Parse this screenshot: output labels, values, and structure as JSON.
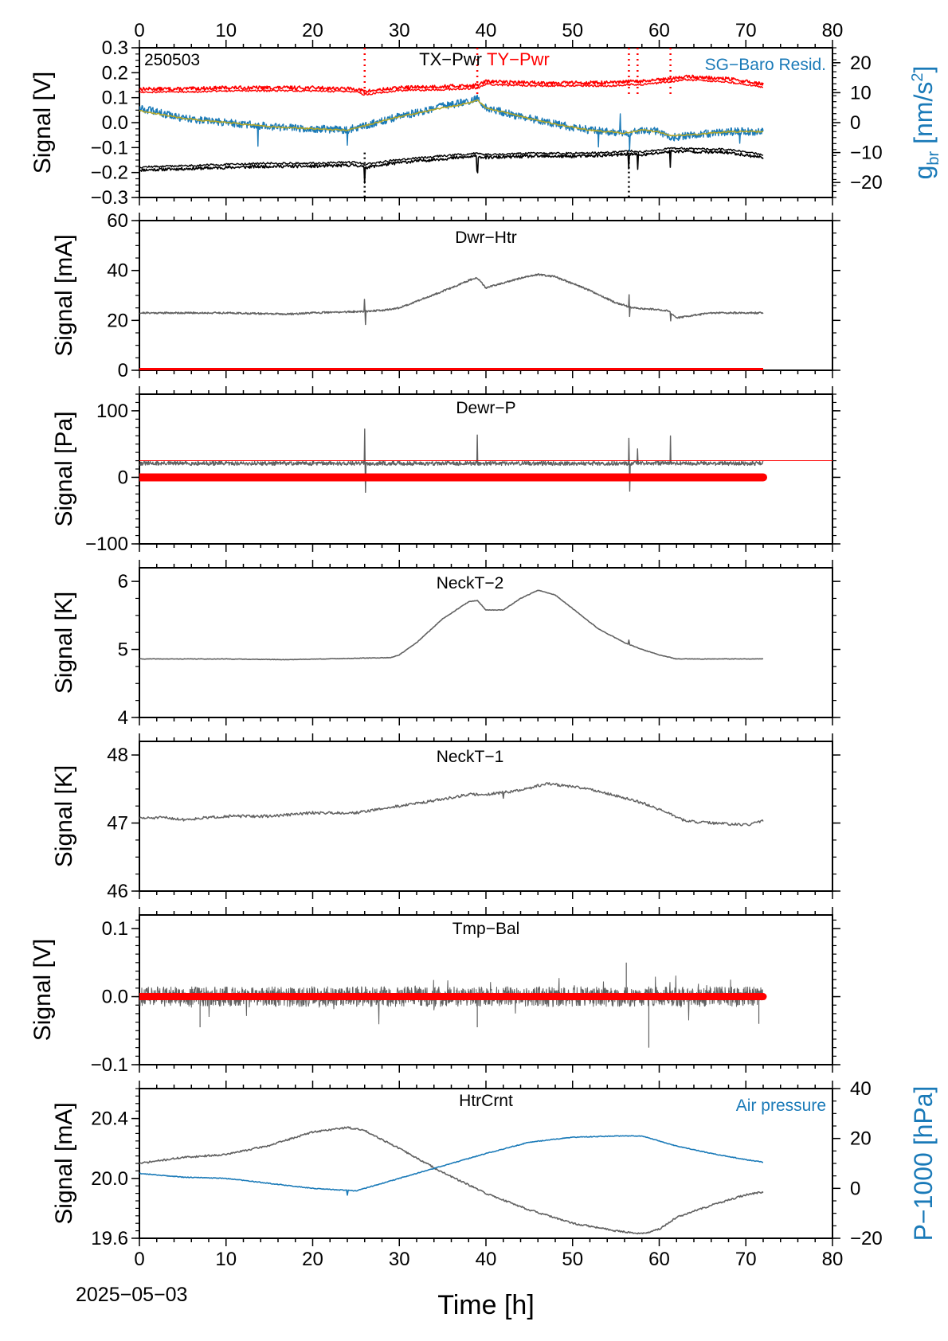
{
  "figure": {
    "date_label": "2025−05−03",
    "x_axis_label": "Time [h]",
    "x_ticks": [
      "0",
      "10",
      "20",
      "30",
      "40",
      "50",
      "60",
      "70",
      "80"
    ]
  },
  "chart_data": [
    {
      "type": "line",
      "panel_id": "p1",
      "corner_label": "250503",
      "title_parts": [
        "TX−Pwr",
        "TY−Pwr"
      ],
      "right_series_label": "SG−Baro Resid.",
      "ylabel": "Signal [V]",
      "ylim": [
        -0.3,
        0.3
      ],
      "y_ticks": [
        "0.3",
        "0.2",
        "0.1",
        "0.0",
        "−0.1",
        "−0.2",
        "−0.3"
      ],
      "y2label_main": "g",
      "y2label_sub": "br",
      "y2label_rest": " [nm/s",
      "y2label_sup": "2",
      "y2label_end": "]",
      "y2lim": [
        -25,
        25
      ],
      "y2_ticks": [
        "20",
        "10",
        "0",
        "−10",
        "−20"
      ],
      "xlim": [
        0,
        80
      ],
      "series": [
        {
          "name": "TX−Pwr",
          "axis": "left",
          "color": "#000000",
          "x": [
            0,
            5,
            10,
            15,
            20,
            25,
            26,
            30,
            35,
            39,
            40,
            45,
            50,
            55,
            56.5,
            58,
            61.3,
            63,
            68,
            72
          ],
          "y": [
            -0.19,
            -0.185,
            -0.18,
            -0.175,
            -0.175,
            -0.17,
            -0.18,
            -0.16,
            -0.145,
            -0.135,
            -0.14,
            -0.135,
            -0.135,
            -0.13,
            -0.125,
            -0.13,
            -0.115,
            -0.115,
            -0.12,
            -0.14
          ]
        },
        {
          "name": "TY−Pwr",
          "axis": "left",
          "color": "#ff0000",
          "x": [
            0,
            5,
            10,
            15,
            20,
            25,
            26,
            30,
            35,
            39,
            40,
            45,
            50,
            55,
            56.5,
            58,
            61.3,
            63,
            68,
            72
          ],
          "y": [
            0.135,
            0.135,
            0.14,
            0.14,
            0.14,
            0.135,
            0.125,
            0.14,
            0.145,
            0.15,
            0.165,
            0.16,
            0.16,
            0.16,
            0.165,
            0.165,
            0.175,
            0.185,
            0.175,
            0.155
          ]
        },
        {
          "name": "SG−Baro Resid.",
          "axis": "right",
          "color": "#1a7ab8",
          "x": [
            0,
            2,
            5,
            8,
            12,
            16,
            20,
            24,
            26,
            30,
            35,
            38,
            39,
            40,
            44,
            48,
            52,
            56,
            58,
            60,
            61.3,
            64,
            68,
            72
          ],
          "y": [
            5,
            3.5,
            1.5,
            0.5,
            -0.5,
            -1.5,
            -2,
            -2.5,
            -1,
            2,
            5.5,
            7,
            8,
            5,
            2,
            -0.5,
            -2.5,
            -3.5,
            -2.5,
            -3,
            -5,
            -4,
            -3,
            -3
          ]
        },
        {
          "name": "",
          "axis": "right",
          "color": "#b0a62a",
          "x": [
            0,
            2,
            5,
            8,
            12,
            16,
            20,
            24,
            26,
            30,
            35,
            38,
            39,
            40,
            44,
            48,
            52,
            56,
            58,
            60,
            61.3,
            64,
            68,
            72
          ],
          "y": [
            4,
            3,
            1.5,
            0.5,
            -0.5,
            -1.5,
            -2,
            -2.5,
            -1,
            2,
            5,
            6.5,
            7.5,
            5,
            2,
            -0.5,
            -2.5,
            -3.5,
            -2.5,
            -3,
            -4.5,
            -4,
            -3,
            -3
          ]
        }
      ]
    },
    {
      "type": "line",
      "panel_id": "p2",
      "title": "Dwr−Htr",
      "ylabel": "Signal [mA]",
      "ylim": [
        0,
        60
      ],
      "y_ticks": [
        "60",
        "40",
        "20",
        "0"
      ],
      "xlim": [
        0,
        80
      ],
      "series": [
        {
          "name": "",
          "color": "#616161",
          "x": [
            0,
            10,
            17,
            20,
            25,
            28,
            30,
            33,
            36,
            38,
            39,
            40,
            43,
            46,
            48,
            52,
            55,
            57,
            61,
            62,
            66,
            72
          ],
          "y": [
            23,
            23,
            22.5,
            23,
            23.5,
            24,
            25,
            29,
            33,
            36,
            37,
            33,
            36,
            38.5,
            37.5,
            32,
            27,
            25,
            24,
            21,
            23,
            23
          ]
        },
        {
          "name": "",
          "color": "#ff0000",
          "x": [
            0,
            72
          ],
          "y": [
            0,
            0
          ]
        }
      ]
    },
    {
      "type": "line",
      "panel_id": "p3",
      "title": "Dewr−P",
      "ylabel": "Signal [Pa]",
      "ylim": [
        -100,
        125
      ],
      "y_ticks": [
        "100",
        "0",
        "−100"
      ],
      "xlim": [
        0,
        80
      ],
      "series": [
        {
          "name": "",
          "color": "#616161",
          "x": [
            0,
            72
          ],
          "y": [
            21,
            21
          ]
        },
        {
          "name": "",
          "color": "#ff0000",
          "x": [
            0,
            72
          ],
          "y": [
            0,
            0
          ]
        },
        {
          "name": "",
          "color": "#ff0000",
          "x": [
            0,
            80
          ],
          "y": [
            25,
            25
          ]
        }
      ]
    },
    {
      "type": "line",
      "panel_id": "p4",
      "title": "NeckT−2",
      "ylabel": "Signal [K]",
      "ylim": [
        4,
        6.2
      ],
      "y_ticks": [
        "6",
        "5",
        "4"
      ],
      "xlim": [
        0,
        80
      ],
      "series": [
        {
          "name": "",
          "color": "#616161",
          "x": [
            0,
            10,
            17,
            25,
            29,
            30,
            32,
            35,
            38,
            39,
            40,
            42,
            44,
            46,
            48,
            50,
            53,
            56,
            58,
            60,
            62,
            66,
            72
          ],
          "y": [
            4.86,
            4.86,
            4.85,
            4.87,
            4.88,
            4.92,
            5.1,
            5.45,
            5.7,
            5.72,
            5.58,
            5.58,
            5.75,
            5.87,
            5.8,
            5.6,
            5.3,
            5.1,
            5.0,
            4.92,
            4.86,
            4.86,
            4.86
          ]
        }
      ]
    },
    {
      "type": "line",
      "panel_id": "p5",
      "title": "NeckT−1",
      "ylabel": "Signal [K]",
      "ylim": [
        46,
        48.2
      ],
      "y_ticks": [
        "48",
        "47",
        "46"
      ],
      "xlim": [
        0,
        80
      ],
      "series": [
        {
          "name": "",
          "color": "#616161",
          "x": [
            0,
            3,
            5,
            10,
            15,
            20,
            25,
            30,
            35,
            38,
            40,
            42,
            44,
            47,
            49,
            52,
            55,
            58,
            61,
            63,
            66,
            70,
            72
          ],
          "y": [
            47.07,
            47.08,
            47.05,
            47.1,
            47.1,
            47.15,
            47.15,
            47.25,
            47.35,
            47.42,
            47.42,
            47.45,
            47.48,
            47.58,
            47.55,
            47.5,
            47.4,
            47.3,
            47.15,
            47.03,
            47.0,
            46.97,
            47.03
          ]
        }
      ]
    },
    {
      "type": "line",
      "panel_id": "p6",
      "title": "Tmp−Bal",
      "ylabel": "Signal [V]",
      "ylim": [
        -0.1,
        0.12
      ],
      "y_ticks": [
        "0.1",
        "0.0",
        "−0.1"
      ],
      "xlim": [
        0,
        80
      ],
      "series": [
        {
          "name": "",
          "color": "#616161",
          "x": [
            0,
            72
          ],
          "y": [
            0.0,
            0.0
          ]
        },
        {
          "name": "",
          "color": "#ff0000",
          "x": [
            0,
            72
          ],
          "y": [
            0.0,
            0.0
          ]
        }
      ]
    },
    {
      "type": "line",
      "panel_id": "p7",
      "title": "HtrCrnt",
      "right_series_label": "Air pressure",
      "ylabel": "Signal [mA]",
      "ylim": [
        19.6,
        20.6
      ],
      "y_ticks": [
        "20.4",
        "20.0",
        "19.6"
      ],
      "y2label": "P−1000 [hPa]",
      "y2lim": [
        -20,
        40
      ],
      "y2_ticks": [
        "40",
        "20",
        "0",
        "−20"
      ],
      "xlim": [
        0,
        80
      ],
      "series": [
        {
          "name": "HtrCrnt",
          "axis": "left",
          "color": "#616161",
          "x": [
            0,
            5,
            10,
            15,
            20,
            24,
            26,
            30,
            35,
            40,
            45,
            50,
            55,
            58,
            60,
            62,
            66,
            70,
            72
          ],
          "y": [
            20.1,
            20.14,
            20.16,
            20.22,
            20.31,
            20.34,
            20.32,
            20.2,
            20.04,
            19.9,
            19.79,
            19.7,
            19.65,
            19.63,
            19.66,
            19.74,
            19.82,
            19.89,
            19.91
          ]
        },
        {
          "name": "Air pressure",
          "axis": "right",
          "color": "#1a7ab8",
          "x": [
            0,
            5,
            10,
            15,
            20,
            25,
            30,
            35,
            40,
            45,
            50,
            55,
            58,
            62,
            66,
            70,
            72
          ],
          "y": [
            6,
            4.5,
            4,
            2,
            0,
            -1,
            4,
            9,
            14,
            18.5,
            20.5,
            21,
            21,
            17,
            14,
            11.5,
            10.5
          ]
        }
      ]
    }
  ]
}
